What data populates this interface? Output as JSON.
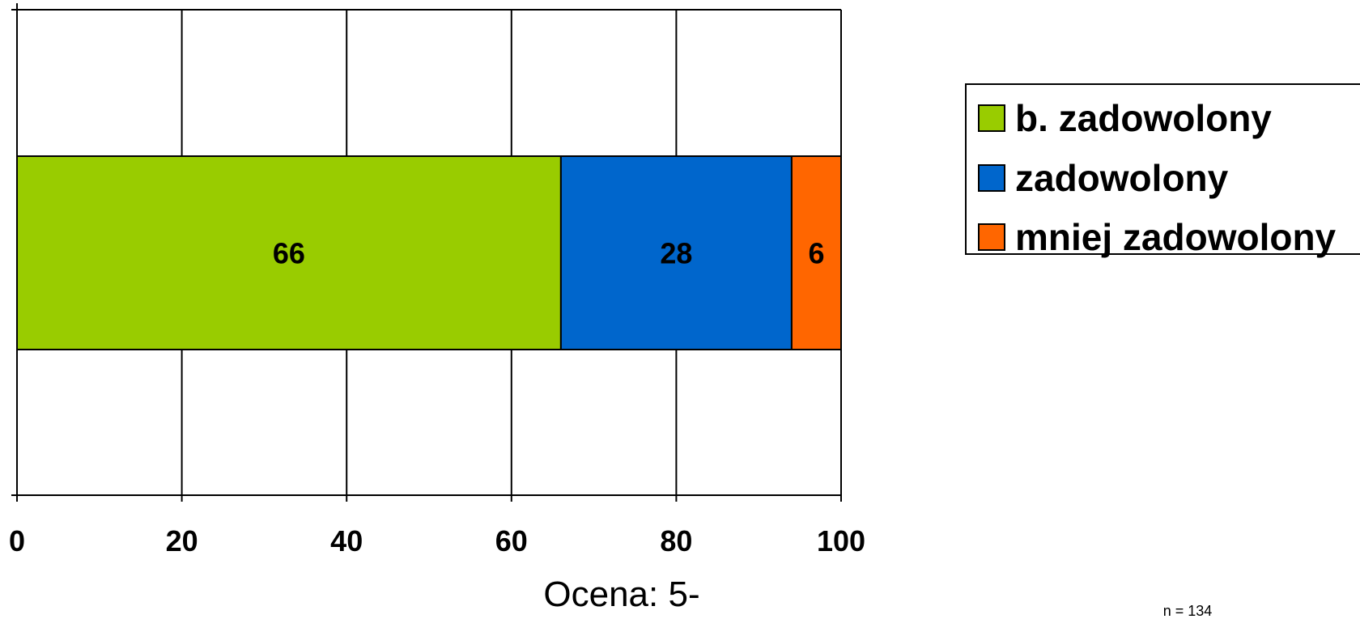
{
  "chart_data": {
    "type": "bar",
    "orientation": "horizontal",
    "stacked": true,
    "categories": [
      ""
    ],
    "series": [
      {
        "name": "b. zadowolony",
        "values": [
          66
        ],
        "color": "#99CC00"
      },
      {
        "name": "zadowolony",
        "values": [
          28
        ],
        "color": "#0066CC"
      },
      {
        "name": "mniej zadowolony",
        "values": [
          6
        ],
        "color": "#FF6600"
      }
    ],
    "xlim": [
      0,
      100
    ],
    "xticks": [
      0,
      20,
      40,
      60,
      80,
      100
    ],
    "xticklabels": [
      "0",
      "20",
      "40",
      "60",
      "80",
      "100"
    ],
    "xlabel": "Ocena: 5-",
    "grid": true,
    "legend": "right",
    "annotation": "n = 134"
  }
}
